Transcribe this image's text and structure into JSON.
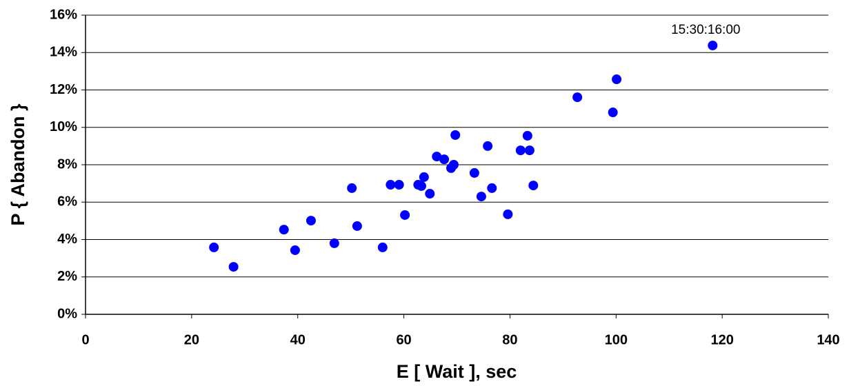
{
  "chart_data": {
    "type": "scatter",
    "x_label": "E [ Wait ], sec",
    "y_label": "P { Abandon }",
    "color": "#0000ff",
    "grid": true,
    "annotations": [
      "15:30:16:00"
    ],
    "xlim": [
      0,
      140
    ],
    "xticks": [
      0,
      20,
      40,
      60,
      80,
      100,
      120,
      140
    ],
    "ylim": [
      0,
      16
    ],
    "yticks": [
      {
        "value": 0,
        "label": "0%"
      },
      {
        "value": 2,
        "label": "2%"
      },
      {
        "value": 4,
        "label": "4%"
      },
      {
        "value": 6,
        "label": "6%"
      },
      {
        "value": 8,
        "label": "8%"
      },
      {
        "value": 10,
        "label": "10%"
      },
      {
        "value": 12,
        "label": "12%"
      },
      {
        "value": 14,
        "label": "14%"
      },
      {
        "value": 16,
        "label": "16%"
      }
    ],
    "x": [
      24.2,
      27.9,
      37.4,
      39.5,
      42.5,
      46.9,
      50.2,
      51.2,
      56.0,
      57.5,
      59.1,
      60.2,
      62.7,
      63.3,
      63.8,
      64.9,
      66.2,
      67.6,
      68.9,
      69.4,
      69.7,
      73.3,
      74.6,
      75.8,
      76.6,
      79.6,
      82.0,
      83.3,
      83.7,
      84.4,
      92.7,
      99.4,
      100.1,
      118.2
    ],
    "values": [
      3.58,
      2.54,
      4.53,
      3.43,
      5.01,
      3.8,
      6.75,
      4.72,
      3.58,
      6.93,
      6.93,
      5.31,
      6.93,
      6.86,
      7.34,
      6.45,
      8.44,
      8.29,
      7.82,
      8.0,
      9.59,
      7.56,
      6.3,
      9.0,
      6.75,
      5.35,
      8.77,
      9.55,
      8.77,
      6.89,
      11.61,
      10.8,
      12.57,
      14.38
    ]
  }
}
